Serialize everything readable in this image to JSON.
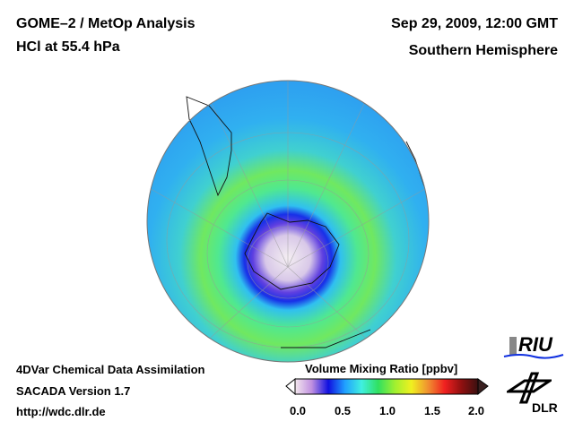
{
  "header": {
    "title": "GOME–2 / MetOp Analysis",
    "subtitle": "HCl at 55.4 hPa",
    "date": "Sep 29, 2009, 12:00 GMT",
    "region": "Southern Hemisphere"
  },
  "footer": {
    "line1": "4DVar Chemical Data Assimilation",
    "line2": "SACADA Version 1.7",
    "url": "http://wdc.dlr.de"
  },
  "colorbar": {
    "label": "Volume Mixing Ratio [ppbv]",
    "ticks": [
      "0.0",
      "0.5",
      "1.0",
      "1.5",
      "2.0"
    ],
    "range": [
      0.0,
      2.0
    ],
    "colors": [
      "#f4e8ee",
      "#c090e0",
      "#1010e0",
      "#20a0ff",
      "#40f0e0",
      "#30e060",
      "#a0f030",
      "#f0f020",
      "#f09030",
      "#f02020",
      "#901010",
      "#3a1010"
    ]
  },
  "logos": {
    "riu": "RIU",
    "dlr": "DLR"
  }
}
